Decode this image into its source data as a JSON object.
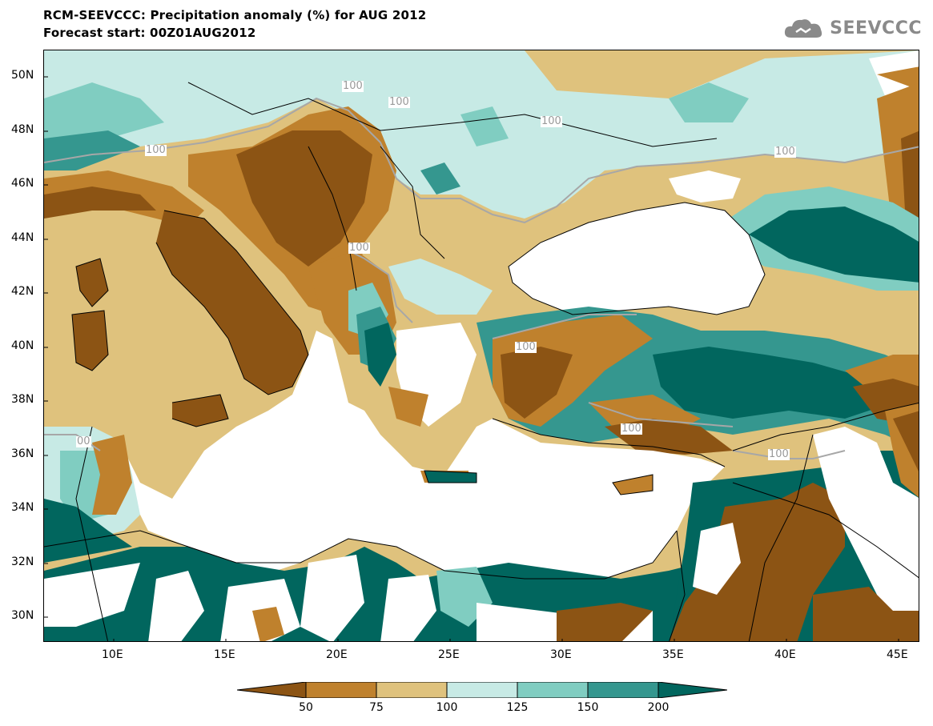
{
  "title_line1": "RCM-SEEVCCC: Precipitation anomaly (%) for AUG 2012",
  "title_line2": "Forecast start: 00Z01AUG2012",
  "logo": {
    "text": "SEEVCCC",
    "icon": "cloud-icon"
  },
  "map": {
    "lat_labels": [
      "50N",
      "48N",
      "46N",
      "44N",
      "42N",
      "40N",
      "38N",
      "36N",
      "34N",
      "32N",
      "30N"
    ],
    "lon_labels": [
      "10E",
      "15E",
      "20E",
      "25E",
      "30E",
      "35E",
      "40E",
      "45E"
    ],
    "contour_labels": [
      "100",
      "100",
      "100",
      "100",
      "100",
      "100",
      "100",
      "100",
      "100",
      "00"
    ],
    "colors": {
      "lt50": "#8c5414",
      "50_75": "#bf812d",
      "75_100": "#dfc27d",
      "100_125": "#c7eae5",
      "125_150": "#80cdc1",
      "150_200": "#35978f",
      "gt200": "#01665e",
      "sea": "#ffffff"
    }
  },
  "colorbar": {
    "labels": [
      "50",
      "75",
      "100",
      "125",
      "150",
      "200"
    ],
    "colors": [
      "#8c5414",
      "#bf812d",
      "#dfc27d",
      "#c7eae5",
      "#80cdc1",
      "#35978f",
      "#01665e"
    ]
  }
}
